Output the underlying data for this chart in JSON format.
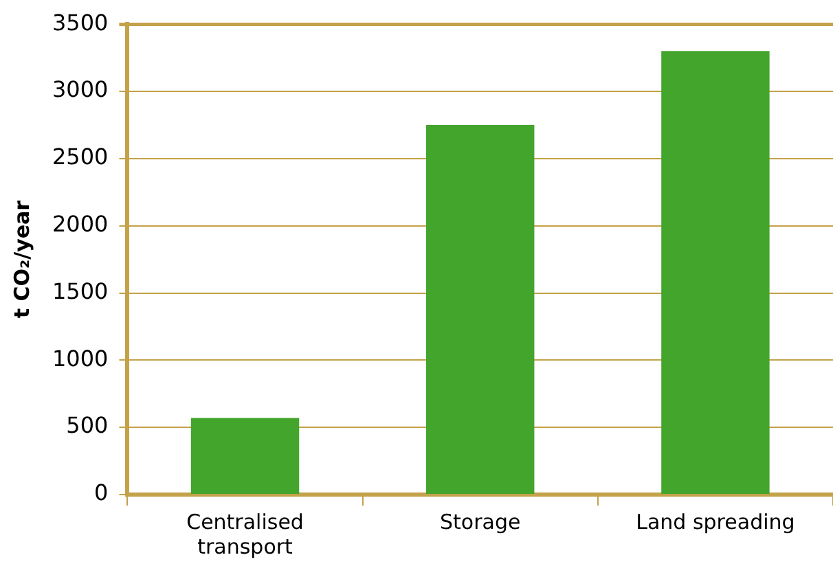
{
  "chart_data": {
    "type": "bar",
    "ylabel": "t CO₂/year",
    "categories": [
      "Centralised transport",
      "Storage",
      "Land spreading"
    ],
    "values": [
      570,
      2750,
      3300
    ],
    "color": "#43a52b",
    "ylim": [
      0,
      3500
    ],
    "yticks": [
      0,
      500,
      1000,
      1500,
      2000,
      2500,
      3000,
      3500
    ],
    "grid": "y",
    "legend": false
  }
}
